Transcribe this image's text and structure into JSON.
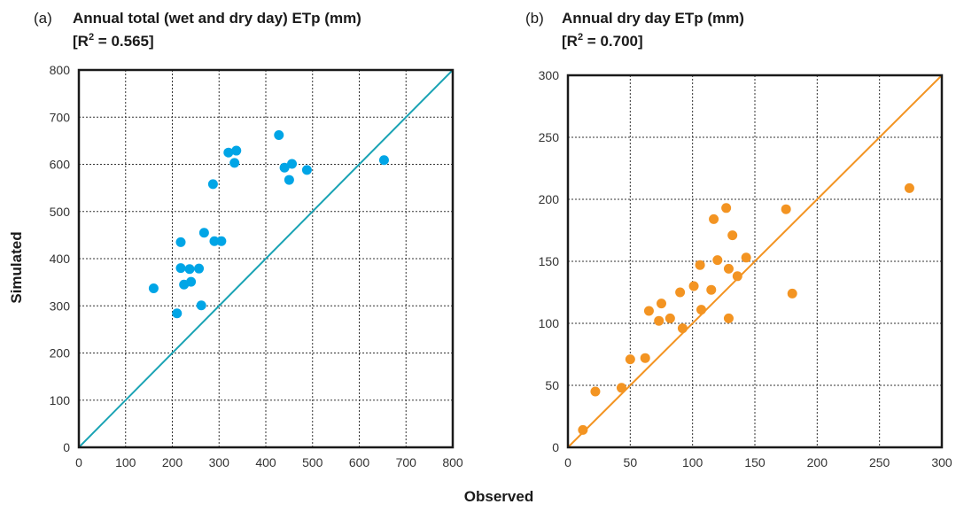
{
  "figure": {
    "shared_ylabel": "Simulated",
    "shared_xlabel": "Observed"
  },
  "panels": [
    {
      "tag": "(a)",
      "title": "Annual total (wet and dry day) ETp (mm)",
      "r2_prefix": "[R",
      "r2_sup": "2",
      "r2_suffix": " = 0.565]",
      "color": "#00a5e6",
      "line_color": "#1aa3b4",
      "xticks": [
        "0",
        "100",
        "200",
        "300",
        "400",
        "500",
        "600",
        "700",
        "800"
      ],
      "yticks": [
        "0",
        "100",
        "200",
        "300",
        "400",
        "500",
        "600",
        "700",
        "800"
      ]
    },
    {
      "tag": "(b)",
      "title": "Annual dry day ETp (mm)",
      "r2_prefix": "[R",
      "r2_sup": "2",
      "r2_suffix": " = 0.700]",
      "color": "#f39422",
      "line_color": "#f39422",
      "xticks": [
        "0",
        "50",
        "100",
        "150",
        "200",
        "250",
        "300"
      ],
      "yticks": [
        "0",
        "50",
        "100",
        "150",
        "200",
        "250",
        "300"
      ]
    }
  ],
  "chart_data": [
    {
      "type": "scatter",
      "title": "Annual total (wet and dry day) ETp (mm)",
      "subtitle": "[R2 = 0.565]",
      "xlabel": "Observed",
      "ylabel": "Simulated",
      "xlim": [
        0,
        800
      ],
      "ylim": [
        0,
        800
      ],
      "grid": true,
      "reference_line": "1:1",
      "points": [
        [
          160,
          337
        ],
        [
          210,
          284
        ],
        [
          218,
          435
        ],
        [
          218,
          380
        ],
        [
          225,
          345
        ],
        [
          237,
          378
        ],
        [
          240,
          351
        ],
        [
          257,
          379
        ],
        [
          262,
          301
        ],
        [
          268,
          455
        ],
        [
          287,
          558
        ],
        [
          290,
          437
        ],
        [
          305,
          437
        ],
        [
          320,
          625
        ],
        [
          333,
          603
        ],
        [
          337,
          629
        ],
        [
          428,
          662
        ],
        [
          440,
          593
        ],
        [
          450,
          567
        ],
        [
          456,
          601
        ],
        [
          488,
          588
        ],
        [
          653,
          609
        ]
      ]
    },
    {
      "type": "scatter",
      "title": "Annual dry day ETp (mm)",
      "subtitle": "[R2 = 0.700]",
      "xlabel": "Observed",
      "ylabel": "Simulated",
      "xlim": [
        0,
        300
      ],
      "ylim": [
        0,
        300
      ],
      "grid": true,
      "reference_line": "1:1",
      "points": [
        [
          12,
          14
        ],
        [
          22,
          45
        ],
        [
          43,
          48
        ],
        [
          50,
          71
        ],
        [
          62,
          72
        ],
        [
          65,
          110
        ],
        [
          73,
          102
        ],
        [
          75,
          116
        ],
        [
          82,
          104
        ],
        [
          90,
          125
        ],
        [
          92,
          96
        ],
        [
          101,
          130
        ],
        [
          106,
          147
        ],
        [
          107,
          111
        ],
        [
          115,
          127
        ],
        [
          117,
          184
        ],
        [
          120,
          151
        ],
        [
          127,
          193
        ],
        [
          129,
          144
        ],
        [
          129,
          104
        ],
        [
          132,
          171
        ],
        [
          136,
          138
        ],
        [
          143,
          153
        ],
        [
          175,
          192
        ],
        [
          180,
          124
        ],
        [
          274,
          209
        ]
      ]
    }
  ]
}
